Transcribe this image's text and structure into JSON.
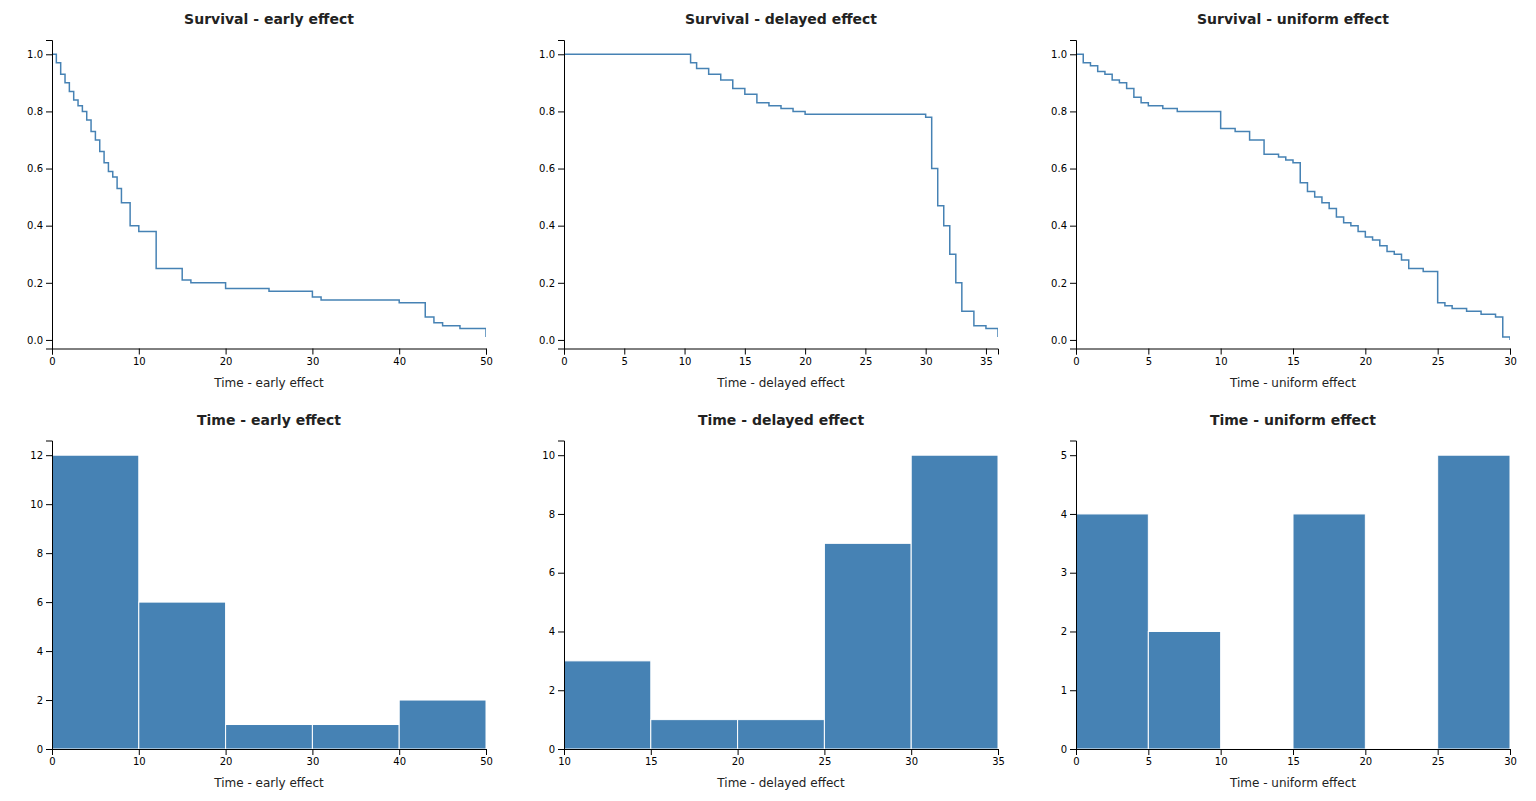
{
  "chart_data": [
    {
      "type": "step",
      "title": "Survival - early effect",
      "xlabel": "Time - early effect",
      "x": [
        0,
        0.5,
        1,
        1.5,
        2,
        2.5,
        3,
        3.5,
        4,
        4.5,
        5,
        5.5,
        6,
        6.5,
        7,
        7.5,
        8,
        9,
        10,
        12,
        15,
        16,
        20,
        25,
        30,
        31,
        40,
        43,
        44,
        45,
        47,
        50
      ],
      "values": [
        1.0,
        0.97,
        0.93,
        0.9,
        0.87,
        0.84,
        0.82,
        0.8,
        0.77,
        0.73,
        0.7,
        0.66,
        0.62,
        0.59,
        0.57,
        0.53,
        0.48,
        0.4,
        0.38,
        0.25,
        0.21,
        0.2,
        0.18,
        0.17,
        0.15,
        0.14,
        0.13,
        0.08,
        0.06,
        0.05,
        0.04,
        0.01
      ],
      "xlim": [
        0,
        50
      ],
      "ylim": [
        -0.03,
        1.05
      ],
      "xticks": [
        0,
        10,
        20,
        30,
        40,
        50
      ],
      "yticks": [
        {
          "value": 0.0,
          "label": "0.0"
        },
        0.2,
        0.4,
        0.6,
        0.8,
        {
          "value": 1.0,
          "label": "1.0"
        }
      ]
    },
    {
      "type": "step",
      "title": "Survival - delayed effect",
      "xlabel": "Time - delayed effect",
      "x": [
        0,
        10,
        10.5,
        11,
        12,
        13,
        14,
        15,
        16,
        17,
        18,
        19,
        20,
        21,
        25,
        30,
        30.5,
        31,
        31.5,
        32,
        32.5,
        33,
        34,
        35,
        36
      ],
      "values": [
        1.0,
        1.0,
        0.97,
        0.95,
        0.93,
        0.91,
        0.88,
        0.86,
        0.83,
        0.82,
        0.81,
        0.8,
        0.79,
        0.79,
        0.79,
        0.78,
        0.6,
        0.47,
        0.4,
        0.3,
        0.2,
        0.1,
        0.05,
        0.04,
        0.01
      ],
      "xlim": [
        0,
        36
      ],
      "ylim": [
        -0.03,
        1.05
      ],
      "xticks": [
        0,
        5,
        10,
        15,
        20,
        25,
        30,
        35
      ],
      "yticks": [
        {
          "value": 0.0,
          "label": "0.0"
        },
        0.2,
        0.4,
        0.6,
        0.8,
        {
          "value": 1.0,
          "label": "1.0"
        }
      ]
    },
    {
      "type": "step",
      "title": "Survival - uniform effect",
      "xlabel": "Time - uniform effect",
      "x": [
        0,
        0.5,
        1,
        1.5,
        2,
        2.5,
        3,
        3.5,
        4,
        4.5,
        5,
        6,
        7,
        8,
        9,
        10,
        11,
        12,
        13,
        14,
        14.5,
        15,
        15.5,
        16,
        16.5,
        17,
        17.5,
        18,
        18.5,
        19,
        19.5,
        20,
        20.5,
        21,
        21.5,
        22,
        22.5,
        23,
        24,
        25,
        25.5,
        26,
        27,
        28,
        29,
        29.5,
        30
      ],
      "values": [
        1.0,
        0.97,
        0.96,
        0.94,
        0.93,
        0.91,
        0.9,
        0.88,
        0.85,
        0.83,
        0.82,
        0.81,
        0.8,
        0.8,
        0.8,
        0.74,
        0.73,
        0.7,
        0.65,
        0.64,
        0.63,
        0.62,
        0.55,
        0.52,
        0.5,
        0.48,
        0.46,
        0.43,
        0.41,
        0.4,
        0.38,
        0.36,
        0.35,
        0.33,
        0.31,
        0.3,
        0.28,
        0.25,
        0.24,
        0.13,
        0.12,
        0.11,
        0.1,
        0.09,
        0.08,
        0.01,
        0.0
      ],
      "xlim": [
        0,
        30
      ],
      "ylim": [
        -0.03,
        1.05
      ],
      "xticks": [
        0,
        5,
        10,
        15,
        20,
        25,
        30
      ],
      "yticks": [
        {
          "value": 0.0,
          "label": "0.0"
        },
        0.2,
        0.4,
        0.6,
        0.8,
        {
          "value": 1.0,
          "label": "1.0"
        }
      ]
    },
    {
      "type": "histogram",
      "title": "Time - early effect",
      "xlabel": "Time - early effect",
      "bins": [
        0,
        10,
        20,
        30,
        40,
        50
      ],
      "values": [
        12,
        6,
        1,
        1,
        2
      ],
      "xlim": [
        0,
        50
      ],
      "ylim": [
        0,
        12.6
      ],
      "xticks": [
        0,
        10,
        20,
        30,
        40,
        50
      ],
      "yticks": [
        0,
        2,
        4,
        6,
        8,
        10,
        12
      ]
    },
    {
      "type": "histogram",
      "title": "Time - delayed effect",
      "xlabel": "Time - delayed effect",
      "bins": [
        10,
        15,
        20,
        25,
        30,
        35
      ],
      "values": [
        3,
        1,
        1,
        7,
        10
      ],
      "xlim": [
        10,
        35
      ],
      "ylim": [
        0,
        10.5
      ],
      "xticks": [
        10,
        15,
        20,
        25,
        30,
        35
      ],
      "yticks": [
        0,
        2,
        4,
        6,
        8,
        10
      ]
    },
    {
      "type": "histogram",
      "title": "Time - uniform effect",
      "xlabel": "Time - uniform effect",
      "bins": [
        0,
        5,
        10,
        15,
        20,
        25,
        30
      ],
      "values": [
        4,
        2,
        0,
        4,
        0,
        5
      ],
      "xlim": [
        0,
        30
      ],
      "ylim": [
        0,
        5.25
      ],
      "xticks": [
        0,
        5,
        10,
        15,
        20,
        25,
        30
      ],
      "yticks": [
        0,
        1,
        2,
        3,
        4,
        5
      ]
    }
  ]
}
